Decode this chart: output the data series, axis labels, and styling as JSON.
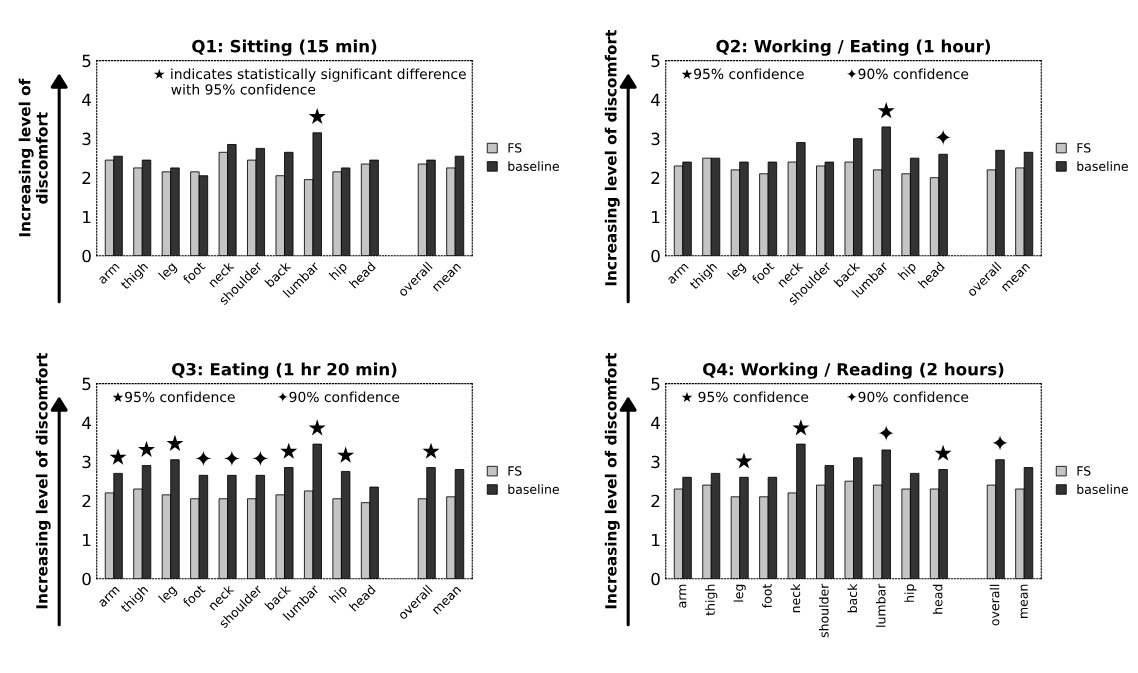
{
  "chart_data": [
    {
      "type": "bar",
      "title": "Q1: Sitting (15 min)",
      "ylabel": "Increasing level of\ndiscomfort",
      "categories": [
        "arm",
        "thigh",
        "leg",
        "foot",
        "neck",
        "shoulder",
        "back",
        "lumbar",
        "hip",
        "head",
        null,
        "overall",
        "mean"
      ],
      "series": [
        {
          "name": "FS",
          "color": "#c4c4c4",
          "values": [
            2.45,
            2.25,
            2.15,
            2.15,
            2.65,
            2.45,
            2.05,
            1.95,
            2.15,
            2.35,
            null,
            2.35,
            2.25
          ]
        },
        {
          "name": "baseline",
          "color": "#333333",
          "values": [
            2.55,
            2.45,
            2.25,
            2.05,
            2.85,
            2.75,
            2.65,
            3.15,
            2.25,
            2.45,
            null,
            2.45,
            2.55
          ]
        }
      ],
      "ylim": [
        0,
        5
      ],
      "yticks": [
        0,
        1,
        2,
        3,
        4,
        5
      ],
      "legend": "right",
      "annotations": [
        "★ indicates statistically significant difference\n    with 95% confidence",
        {
          "text": "★",
          "x": "lumbar",
          "y": 3.15
        }
      ]
    },
    {
      "type": "bar",
      "title": "Q2: Working / Eating (1 hour)",
      "ylabel": "Increasing level of discomfort",
      "categories": [
        "arm",
        "thigh",
        "leg",
        "foot",
        "neck",
        "shoulder",
        "back",
        "lumbar",
        "hip",
        "head",
        null,
        "overall",
        "mean"
      ],
      "series": [
        {
          "name": "FS",
          "color": "#c4c4c4",
          "values": [
            2.3,
            2.5,
            2.2,
            2.1,
            2.4,
            2.3,
            2.4,
            2.2,
            2.1,
            2.0,
            null,
            2.2,
            2.25
          ]
        },
        {
          "name": "baseline",
          "color": "#333333",
          "values": [
            2.4,
            2.5,
            2.4,
            2.4,
            2.9,
            2.4,
            3.0,
            3.3,
            2.5,
            2.6,
            null,
            2.7,
            2.65
          ]
        }
      ],
      "ylim": [
        0,
        5
      ],
      "yticks": [
        0,
        1,
        2,
        3,
        4,
        5
      ],
      "legend": "right",
      "annotations": [
        "★95% confidence",
        "✦90% confidence",
        {
          "text": "★",
          "x": "lumbar",
          "y": 3.3
        },
        {
          "text": "✦",
          "x": "head",
          "y": 2.6
        }
      ]
    },
    {
      "type": "bar",
      "title": "Q3: Eating (1 hr 20 min)",
      "ylabel": "Increasing level of discomfort",
      "categories": [
        "arm",
        "thigh",
        "leg",
        "foot",
        "neck",
        "shoulder",
        "back",
        "lumbar",
        "hip",
        "head",
        null,
        "overall",
        "mean"
      ],
      "series": [
        {
          "name": "FS",
          "color": "#c4c4c4",
          "values": [
            2.2,
            2.3,
            2.15,
            2.05,
            2.05,
            2.05,
            2.15,
            2.25,
            2.05,
            1.95,
            null,
            2.05,
            2.1
          ]
        },
        {
          "name": "baseline",
          "color": "#333333",
          "values": [
            2.7,
            2.9,
            3.05,
            2.65,
            2.65,
            2.65,
            2.85,
            3.45,
            2.75,
            2.35,
            null,
            2.85,
            2.8
          ]
        }
      ],
      "ylim": [
        0,
        5
      ],
      "yticks": [
        0,
        1,
        2,
        3,
        4,
        5
      ],
      "legend": "right",
      "annotations": [
        "★95% confidence",
        "✦90% confidence",
        {
          "text": "★",
          "x": "arm",
          "y": 2.7
        },
        {
          "text": "★",
          "x": "thigh",
          "y": 2.9
        },
        {
          "text": "★",
          "x": "leg",
          "y": 3.05
        },
        {
          "text": "✦",
          "x": "foot",
          "y": 2.65
        },
        {
          "text": "✦",
          "x": "neck",
          "y": 2.65
        },
        {
          "text": "✦",
          "x": "shoulder",
          "y": 2.65
        },
        {
          "text": "★",
          "x": "back",
          "y": 2.85
        },
        {
          "text": "★",
          "x": "lumbar",
          "y": 3.45
        },
        {
          "text": "★",
          "x": "hip",
          "y": 2.75
        },
        {
          "text": "★",
          "x": "overall",
          "y": 2.85
        }
      ]
    },
    {
      "type": "bar",
      "title": "Q4: Working / Reading (2 hours)",
      "ylabel": "Increasing level of discomfort",
      "categories": [
        "arm",
        "thigh",
        "leg",
        "foot",
        "neck",
        "shoulder",
        "back",
        "lumbar",
        "hip",
        "head",
        null,
        "overall",
        "mean"
      ],
      "series": [
        {
          "name": "FS",
          "color": "#c4c4c4",
          "values": [
            2.3,
            2.4,
            2.1,
            2.1,
            2.2,
            2.4,
            2.5,
            2.4,
            2.3,
            2.3,
            null,
            2.4,
            2.3
          ]
        },
        {
          "name": "baseline",
          "color": "#333333",
          "values": [
            2.6,
            2.7,
            2.6,
            2.6,
            3.45,
            2.9,
            3.1,
            3.3,
            2.7,
            2.8,
            null,
            3.05,
            2.85
          ]
        }
      ],
      "ylim": [
        0,
        5
      ],
      "yticks": [
        0,
        1,
        2,
        3,
        4,
        5
      ],
      "legend": "right",
      "annotations": [
        "★ 95% confidence",
        "✦90% confidence",
        {
          "text": "★",
          "x": "leg",
          "y": 2.6
        },
        {
          "text": "★",
          "x": "neck",
          "y": 3.45
        },
        {
          "text": "✦",
          "x": "lumbar",
          "y": 3.3
        },
        {
          "text": "★",
          "x": "head",
          "y": 2.8
        },
        {
          "text": "✦",
          "x": "overall",
          "y": 3.05
        }
      ]
    }
  ]
}
